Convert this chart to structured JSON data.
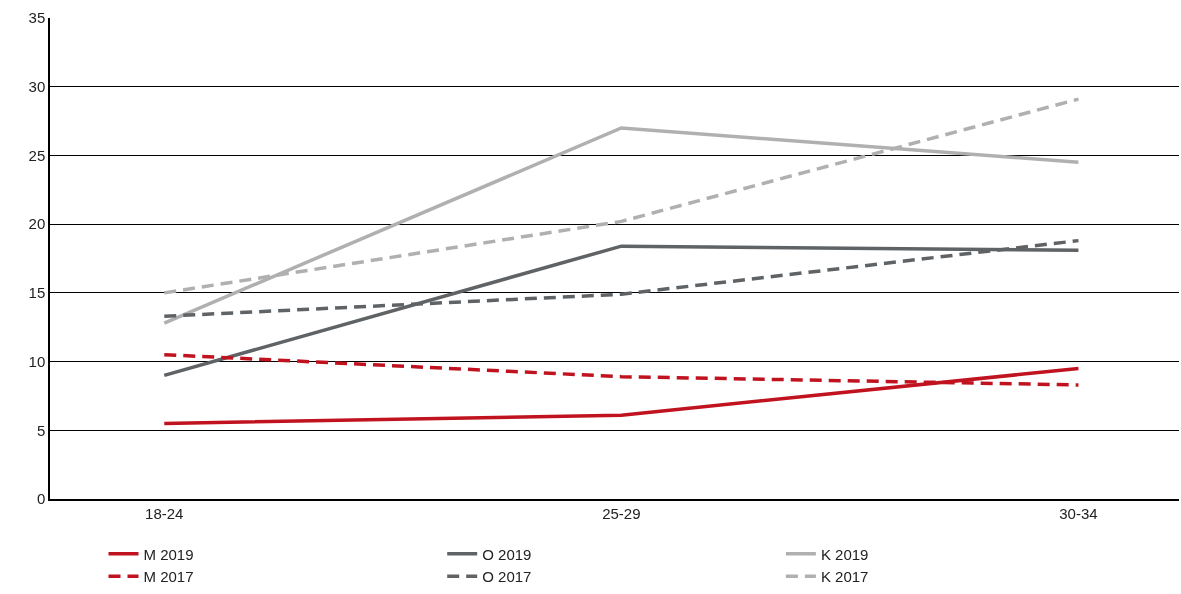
{
  "chart_data": {
    "type": "line",
    "categories": [
      "18-24",
      "25-29",
      "30-34"
    ],
    "ylim": [
      0,
      35
    ],
    "yticks": [
      0,
      5,
      10,
      15,
      20,
      25,
      30,
      35
    ],
    "grid": "y",
    "legend": "bottom",
    "marker": "none",
    "series": [
      {
        "name": "M 2019",
        "color": "#c0131f",
        "line_style": "solid",
        "values": [
          5.5,
          6.1,
          9.5
        ]
      },
      {
        "name": "O 2019",
        "color": "#5f6366",
        "line_style": "solid",
        "values": [
          9.0,
          18.4,
          18.1
        ]
      },
      {
        "name": "K 2019",
        "color": "#b0b0b0",
        "line_style": "solid",
        "values": [
          12.8,
          27.0,
          24.5
        ]
      },
      {
        "name": "M 2017",
        "color": "#c0131f",
        "line_style": "dashed",
        "values": [
          10.5,
          8.9,
          8.3
        ]
      },
      {
        "name": "O 2017",
        "color": "#5f6366",
        "line_style": "dashed",
        "values": [
          13.3,
          14.9,
          18.8
        ]
      },
      {
        "name": "K 2017",
        "color": "#b0b0b0",
        "line_style": "dashed",
        "values": [
          15.0,
          20.2,
          29.1
        ]
      }
    ]
  }
}
